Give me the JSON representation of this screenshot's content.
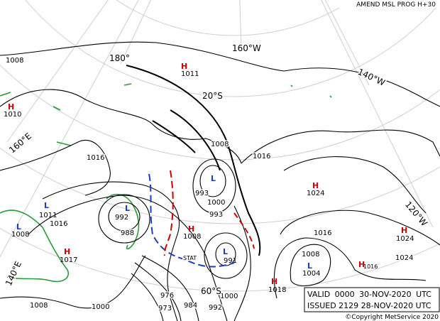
{
  "header": "AMEND MSL PROG H+30",
  "grid_labels": [
    "180°",
    "160°W",
    "140°W",
    "120°W",
    "20°S",
    "160°E",
    "140°E",
    "60°S"
  ],
  "systems": [
    {
      "type": "H",
      "value": "1011"
    },
    {
      "type": "H",
      "value": "1010"
    },
    {
      "type": "H",
      "value": "1024"
    },
    {
      "type": "L",
      "value": "993"
    },
    {
      "type": "L",
      "value": "1011"
    },
    {
      "type": "L",
      "value": "1008"
    },
    {
      "type": "L",
      "value": "992"
    },
    {
      "type": "H",
      "value": "1008"
    },
    {
      "type": "H",
      "value": "1024"
    },
    {
      "type": "H",
      "value": "1017"
    },
    {
      "type": "L",
      "value": "991"
    },
    {
      "type": "L",
      "value": "1004"
    },
    {
      "type": "H",
      "value": "1016"
    },
    {
      "type": "H",
      "value": "1018"
    }
  ],
  "isobar_labels": [
    "1008",
    "1008",
    "1016",
    "1016",
    "1000",
    "993",
    "1016",
    "988",
    "1016",
    "1008",
    "1024",
    "1000",
    "976",
    "1008",
    "1000",
    "973",
    "984",
    "992"
  ],
  "stat": "STAT",
  "validity": {
    "valid": "VALID 0000 30-NOV-2020 UTC",
    "issued": "ISSUED 2129 28-NOV-2020 UTC"
  },
  "copyright": "©Copyright MetService 2020"
}
